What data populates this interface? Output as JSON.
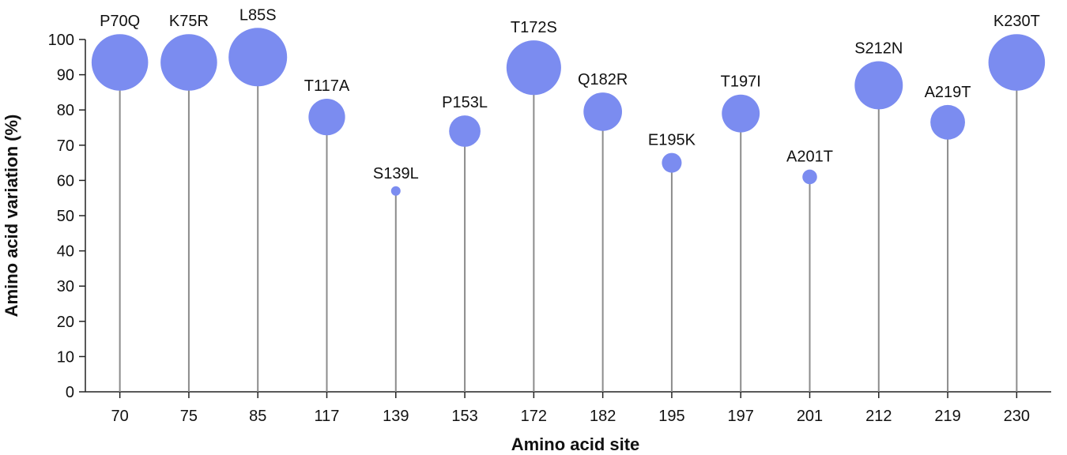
{
  "chart_data": {
    "type": "scatter",
    "subtype": "lollipop-bubble",
    "xlabel": "Amino acid site",
    "ylabel": "Amino acid variation (%)",
    "ylim": [
      0,
      100
    ],
    "yticks": [
      0,
      10,
      20,
      30,
      40,
      50,
      60,
      70,
      80,
      90,
      100
    ],
    "categories": [
      "70",
      "75",
      "85",
      "117",
      "139",
      "153",
      "172",
      "182",
      "195",
      "197",
      "201",
      "212",
      "219",
      "230"
    ],
    "labels": [
      "P70Q",
      "K75R",
      "L85S",
      "T117A",
      "S139L",
      "P153L",
      "T172S",
      "Q182R",
      "E195K",
      "T197I",
      "A201T",
      "S212N",
      "A219T",
      "K230T"
    ],
    "values": [
      93.5,
      93.5,
      95,
      78,
      57,
      74,
      92,
      79.5,
      65,
      79,
      61,
      87,
      76.5,
      93.5
    ],
    "grid": false,
    "marker_color": "#7b8cf0"
  }
}
